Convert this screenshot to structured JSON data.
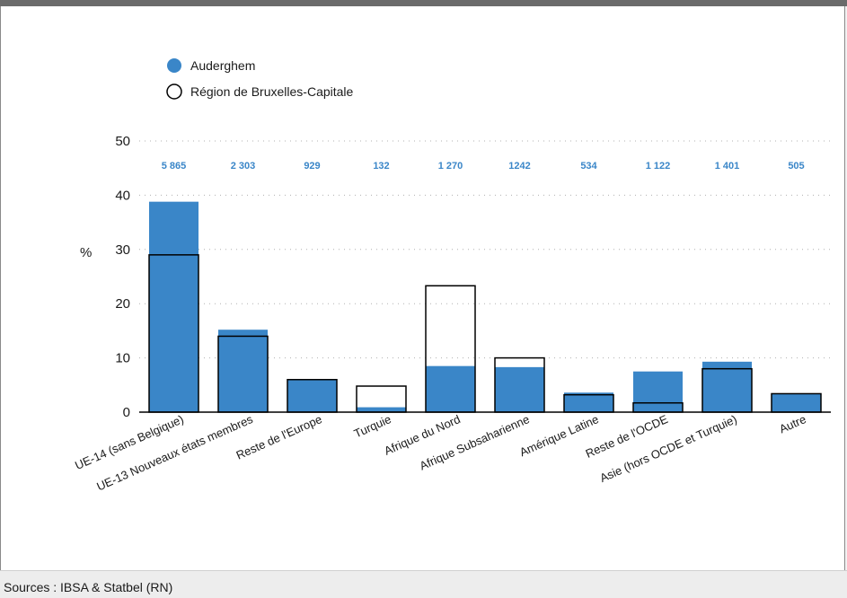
{
  "source": "Sources : IBSA & Statbel (RN)",
  "legend": {
    "auderghem": "Auderghem",
    "bruxelles": "Région de Bruxelles-Capitale"
  },
  "colors": {
    "auderghem": "#3a86c8",
    "bruxelles_outline": "#000000",
    "label": "#3a86c8",
    "grid": "#b0b0b0"
  },
  "chart_data": {
    "type": "bar",
    "ylabel": "%",
    "ylim": [
      0,
      50
    ],
    "yticks": [
      0,
      10,
      20,
      30,
      40,
      50
    ],
    "grid": "dotted-horizontal",
    "legend_position": "top-left",
    "categories": [
      "UE-14 (sans Belgique)",
      "UE-13 Nouveaux états membres",
      "Reste de l'Europe",
      "Turquie",
      "Afrique du Nord",
      "Afrique Subsaharienne",
      "Amérique Latine",
      "Reste de l'OCDE",
      "Asie (hors OCDE et Turquie)",
      "Autre"
    ],
    "series": [
      {
        "name": "Auderghem",
        "values": [
          38.8,
          15.2,
          6.0,
          0.9,
          8.5,
          8.3,
          3.6,
          7.5,
          9.3,
          3.4
        ]
      },
      {
        "name": "Région de Bruxelles-Capitale",
        "values": [
          29.0,
          14.0,
          6.0,
          4.8,
          23.3,
          10.0,
          3.2,
          1.7,
          8.0,
          3.4
        ]
      }
    ],
    "counts": [
      "5 865",
      "2 303",
      "929",
      "132",
      "1 270",
      "1242",
      "534",
      "1 122",
      "1 401",
      "505"
    ]
  }
}
